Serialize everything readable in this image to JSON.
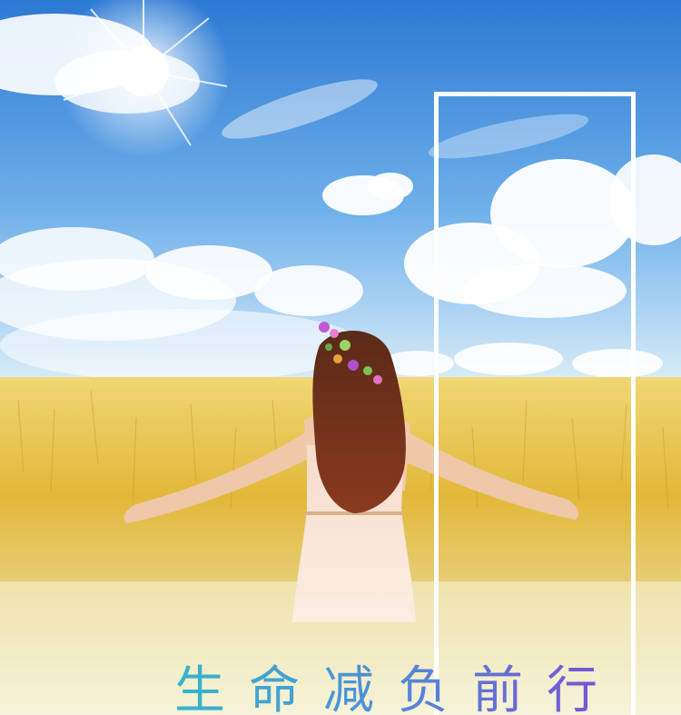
{
  "poster": {
    "headline": "生命减负前行"
  },
  "colors": {
    "sky_top": "#2f7fd6",
    "sky_bottom": "#cfe5f6",
    "field": "#e6c24a",
    "headline_start": "#35b6c9",
    "headline_end": "#7a4fd6",
    "frame": "#ffffff"
  }
}
